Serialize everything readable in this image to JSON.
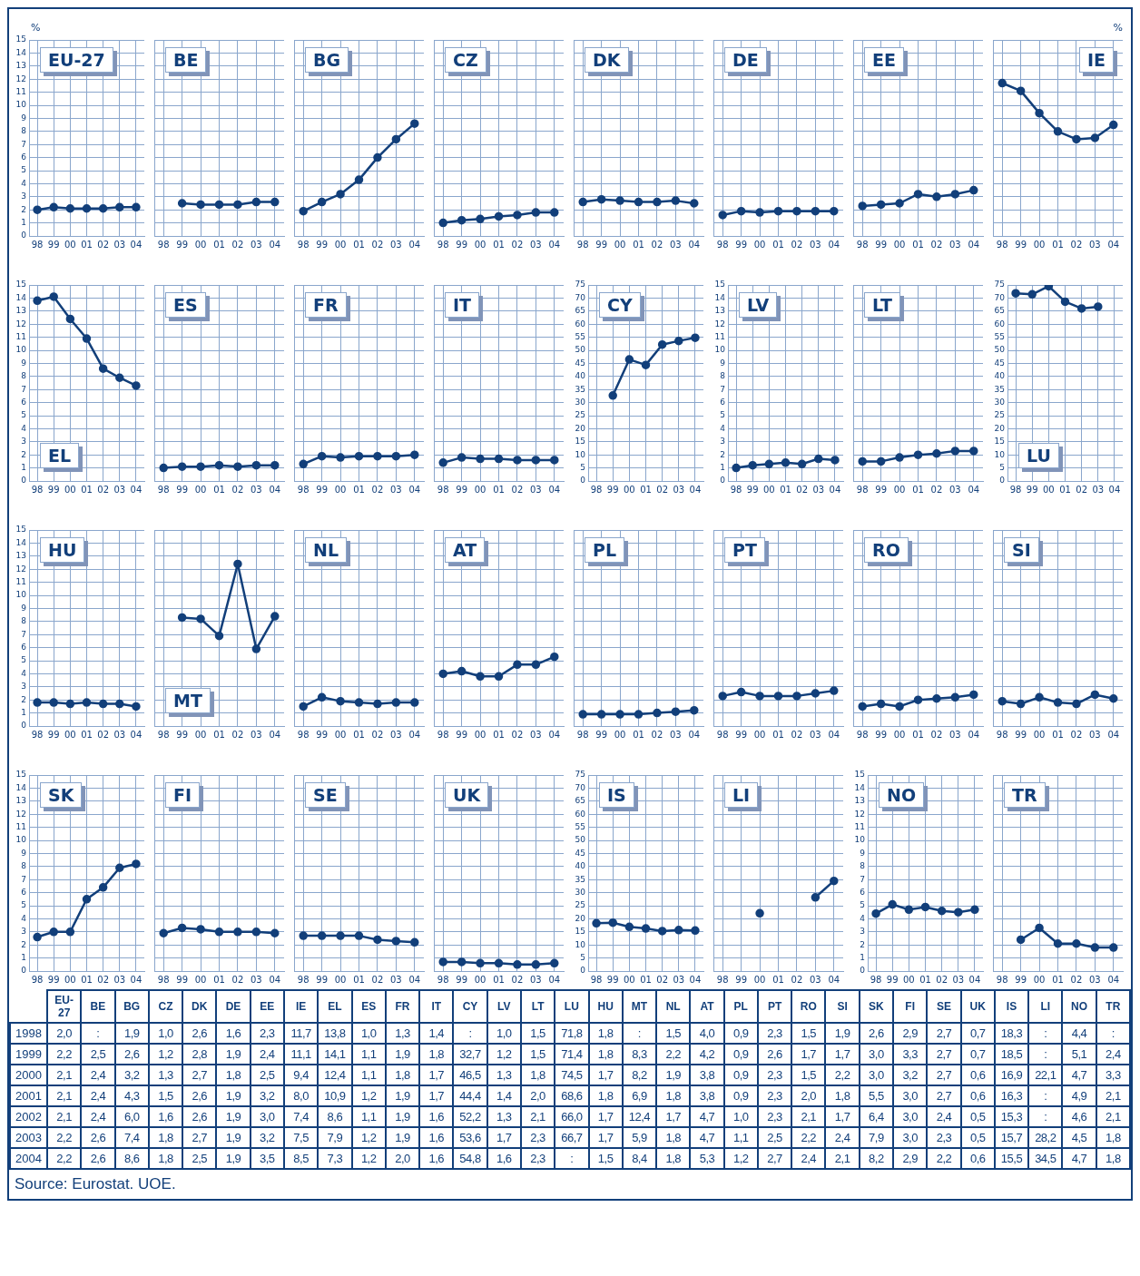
{
  "chart_data": [
    {
      "type": "line",
      "title": "EU-27",
      "ylabel": "%",
      "categories": [
        "98",
        "99",
        "00",
        "01",
        "02",
        "03",
        "04"
      ],
      "values": [
        2.0,
        2.2,
        2.1,
        2.1,
        2.1,
        2.2,
        2.2
      ],
      "value_labels": [
        "2,0",
        "2,2",
        "2,1",
        "2,1",
        "2,1",
        "2,2",
        "2,2"
      ],
      "color": "#123f7a",
      "ylim": [
        0,
        15
      ],
      "yticks": [
        0,
        1,
        2,
        3,
        4,
        5,
        6,
        7,
        8,
        9,
        10,
        11,
        12,
        13,
        14,
        15
      ],
      "grid": true,
      "marker": "circle"
    },
    {
      "type": "line",
      "title": "BE",
      "categories": [
        "98",
        "99",
        "00",
        "01",
        "02",
        "03",
        "04"
      ],
      "values": [
        null,
        2.5,
        2.4,
        2.4,
        2.4,
        2.6,
        2.6
      ],
      "value_labels": [
        ":",
        "2,5",
        "2,4",
        "2,4",
        "2,4",
        "2,6",
        "2,6"
      ],
      "color": "#123f7a",
      "ylim": [
        0,
        15
      ],
      "yticks": [
        0,
        1,
        2,
        3,
        4,
        5,
        6,
        7,
        8,
        9,
        10,
        11,
        12,
        13,
        14,
        15
      ],
      "grid": true,
      "marker": "circle",
      "tick_labels": "x"
    },
    {
      "type": "line",
      "title": "BG",
      "categories": [
        "98",
        "99",
        "00",
        "01",
        "02",
        "03",
        "04"
      ],
      "values": [
        1.9,
        2.6,
        3.2,
        4.3,
        6.0,
        7.4,
        8.6
      ],
      "value_labels": [
        "1,9",
        "2,6",
        "3,2",
        "4,3",
        "6,0",
        "7,4",
        "8,6"
      ],
      "color": "#123f7a",
      "ylim": [
        0,
        15
      ],
      "yticks": [
        0,
        1,
        2,
        3,
        4,
        5,
        6,
        7,
        8,
        9,
        10,
        11,
        12,
        13,
        14,
        15
      ],
      "grid": true,
      "marker": "circle",
      "tick_labels": "x"
    },
    {
      "type": "line",
      "title": "CZ",
      "categories": [
        "98",
        "99",
        "00",
        "01",
        "02",
        "03",
        "04"
      ],
      "values": [
        1.0,
        1.2,
        1.3,
        1.5,
        1.6,
        1.8,
        1.8
      ],
      "value_labels": [
        "1,0",
        "1,2",
        "1,3",
        "1,5",
        "1,6",
        "1,8",
        "1,8"
      ],
      "color": "#123f7a",
      "ylim": [
        0,
        15
      ],
      "yticks": [
        0,
        1,
        2,
        3,
        4,
        5,
        6,
        7,
        8,
        9,
        10,
        11,
        12,
        13,
        14,
        15
      ],
      "grid": true,
      "marker": "circle",
      "tick_labels": "x"
    },
    {
      "type": "line",
      "title": "DK",
      "categories": [
        "98",
        "99",
        "00",
        "01",
        "02",
        "03",
        "04"
      ],
      "values": [
        2.6,
        2.8,
        2.7,
        2.6,
        2.6,
        2.7,
        2.5
      ],
      "value_labels": [
        "2,6",
        "2,8",
        "2,7",
        "2,6",
        "2,6",
        "2,7",
        "2,5"
      ],
      "color": "#123f7a",
      "ylim": [
        0,
        15
      ],
      "yticks": [
        0,
        1,
        2,
        3,
        4,
        5,
        6,
        7,
        8,
        9,
        10,
        11,
        12,
        13,
        14,
        15
      ],
      "grid": true,
      "marker": "circle",
      "tick_labels": "x"
    },
    {
      "type": "line",
      "title": "DE",
      "categories": [
        "98",
        "99",
        "00",
        "01",
        "02",
        "03",
        "04"
      ],
      "values": [
        1.6,
        1.9,
        1.8,
        1.9,
        1.9,
        1.9,
        1.9
      ],
      "value_labels": [
        "1,6",
        "1,9",
        "1,8",
        "1,9",
        "1,9",
        "1,9",
        "1,9"
      ],
      "color": "#123f7a",
      "ylim": [
        0,
        15
      ],
      "yticks": [
        0,
        1,
        2,
        3,
        4,
        5,
        6,
        7,
        8,
        9,
        10,
        11,
        12,
        13,
        14,
        15
      ],
      "grid": true,
      "marker": "circle",
      "tick_labels": "x"
    },
    {
      "type": "line",
      "title": "EE",
      "categories": [
        "98",
        "99",
        "00",
        "01",
        "02",
        "03",
        "04"
      ],
      "values": [
        2.3,
        2.4,
        2.5,
        3.2,
        3.0,
        3.2,
        3.5
      ],
      "value_labels": [
        "2,3",
        "2,4",
        "2,5",
        "3,2",
        "3,0",
        "3,2",
        "3,5"
      ],
      "color": "#123f7a",
      "ylim": [
        0,
        15
      ],
      "yticks": [
        0,
        1,
        2,
        3,
        4,
        5,
        6,
        7,
        8,
        9,
        10,
        11,
        12,
        13,
        14,
        15
      ],
      "grid": true,
      "marker": "circle",
      "tick_labels": "x"
    },
    {
      "type": "line",
      "title": "IE",
      "ylabel": "%",
      "categories": [
        "98",
        "99",
        "00",
        "01",
        "02",
        "03",
        "04"
      ],
      "values": [
        11.7,
        11.1,
        9.4,
        8.0,
        7.4,
        7.5,
        8.5
      ],
      "value_labels": [
        "11,7",
        "11,1",
        "9,4",
        "8,0",
        "7,4",
        "7,5",
        "8,5"
      ],
      "color": "#123f7a",
      "ylim": [
        0,
        15
      ],
      "yticks": [
        0,
        1,
        2,
        3,
        4,
        5,
        6,
        7,
        8,
        9,
        10,
        11,
        12,
        13,
        14,
        15
      ],
      "grid": true,
      "marker": "circle",
      "tick_labels": "x"
    },
    {
      "type": "line",
      "title": "EL",
      "categories": [
        "98",
        "99",
        "00",
        "01",
        "02",
        "03",
        "04"
      ],
      "values": [
        13.8,
        14.1,
        12.4,
        10.9,
        8.6,
        7.9,
        7.3
      ],
      "value_labels": [
        "13,8",
        "14,1",
        "12,4",
        "10,9",
        "8,6",
        "7,9",
        "7,3"
      ],
      "color": "#123f7a",
      "ylim": [
        0,
        15
      ],
      "yticks": [
        0,
        1,
        2,
        3,
        4,
        5,
        6,
        7,
        8,
        9,
        10,
        11,
        12,
        13,
        14,
        15
      ],
      "grid": true,
      "marker": "circle"
    },
    {
      "type": "line",
      "title": "ES",
      "categories": [
        "98",
        "99",
        "00",
        "01",
        "02",
        "03",
        "04"
      ],
      "values": [
        1.0,
        1.1,
        1.1,
        1.2,
        1.1,
        1.2,
        1.2
      ],
      "value_labels": [
        "1,0",
        "1,1",
        "1,1",
        "1,2",
        "1,1",
        "1,2",
        "1,2"
      ],
      "color": "#123f7a",
      "ylim": [
        0,
        15
      ],
      "yticks": [
        0,
        1,
        2,
        3,
        4,
        5,
        6,
        7,
        8,
        9,
        10,
        11,
        12,
        13,
        14,
        15
      ],
      "grid": true,
      "marker": "circle",
      "tick_labels": "x"
    },
    {
      "type": "line",
      "title": "FR",
      "categories": [
        "98",
        "99",
        "00",
        "01",
        "02",
        "03",
        "04"
      ],
      "values": [
        1.3,
        1.9,
        1.8,
        1.9,
        1.9,
        1.9,
        2.0
      ],
      "value_labels": [
        "1,3",
        "1,9",
        "1,8",
        "1,9",
        "1,9",
        "1,9",
        "2,0"
      ],
      "color": "#123f7a",
      "ylim": [
        0,
        15
      ],
      "yticks": [
        0,
        1,
        2,
        3,
        4,
        5,
        6,
        7,
        8,
        9,
        10,
        11,
        12,
        13,
        14,
        15
      ],
      "grid": true,
      "marker": "circle",
      "tick_labels": "x"
    },
    {
      "type": "line",
      "title": "IT",
      "categories": [
        "98",
        "99",
        "00",
        "01",
        "02",
        "03",
        "04"
      ],
      "values": [
        1.4,
        1.8,
        1.7,
        1.7,
        1.6,
        1.6,
        1.6
      ],
      "value_labels": [
        "1,4",
        "1,8",
        "1,7",
        "1,7",
        "1,6",
        "1,6",
        "1,6"
      ],
      "color": "#123f7a",
      "ylim": [
        0,
        15
      ],
      "yticks": [
        0,
        1,
        2,
        3,
        4,
        5,
        6,
        7,
        8,
        9,
        10,
        11,
        12,
        13,
        14,
        15
      ],
      "grid": true,
      "marker": "circle",
      "tick_labels": "x"
    },
    {
      "type": "line",
      "title": "CY",
      "categories": [
        "98",
        "99",
        "00",
        "01",
        "02",
        "03",
        "04"
      ],
      "values": [
        null,
        32.7,
        46.5,
        44.4,
        52.2,
        53.6,
        54.8
      ],
      "value_labels": [
        ":",
        "32,7",
        "46,5",
        "44,4",
        "52,2",
        "53,6",
        "54,8"
      ],
      "color": "#123f7a",
      "ylim": [
        0,
        75
      ],
      "yticks": [
        0,
        5,
        10,
        15,
        20,
        25,
        30,
        35,
        40,
        45,
        50,
        55,
        60,
        65,
        70,
        75
      ],
      "grid": true,
      "marker": "circle"
    },
    {
      "type": "line",
      "title": "LV",
      "categories": [
        "98",
        "99",
        "00",
        "01",
        "02",
        "03",
        "04"
      ],
      "values": [
        1.0,
        1.2,
        1.3,
        1.4,
        1.3,
        1.7,
        1.6
      ],
      "value_labels": [
        "1,0",
        "1,2",
        "1,3",
        "1,4",
        "1,3",
        "1,7",
        "1,6"
      ],
      "color": "#123f7a",
      "ylim": [
        0,
        15
      ],
      "yticks": [
        0,
        1,
        2,
        3,
        4,
        5,
        6,
        7,
        8,
        9,
        10,
        11,
        12,
        13,
        14,
        15
      ],
      "grid": true,
      "marker": "circle"
    },
    {
      "type": "line",
      "title": "LT",
      "categories": [
        "98",
        "99",
        "00",
        "01",
        "02",
        "03",
        "04"
      ],
      "values": [
        1.5,
        1.5,
        1.8,
        2.0,
        2.1,
        2.3,
        2.3
      ],
      "value_labels": [
        "1,5",
        "1,5",
        "1,8",
        "2,0",
        "2,1",
        "2,3",
        "2,3"
      ],
      "color": "#123f7a",
      "ylim": [
        0,
        15
      ],
      "yticks": [
        0,
        1,
        2,
        3,
        4,
        5,
        6,
        7,
        8,
        9,
        10,
        11,
        12,
        13,
        14,
        15
      ],
      "grid": true,
      "marker": "circle",
      "tick_labels": "x"
    },
    {
      "type": "line",
      "title": "LU",
      "categories": [
        "98",
        "99",
        "00",
        "01",
        "02",
        "03",
        "04"
      ],
      "values": [
        71.8,
        71.4,
        74.5,
        68.6,
        66.0,
        66.7,
        null
      ],
      "value_labels": [
        "71,8",
        "71,4",
        "74,5",
        "68,6",
        "66,0",
        "66,7",
        ":"
      ],
      "color": "#123f7a",
      "ylim": [
        0,
        75
      ],
      "yticks": [
        0,
        5,
        10,
        15,
        20,
        25,
        30,
        35,
        40,
        45,
        50,
        55,
        60,
        65,
        70,
        75
      ],
      "grid": true,
      "marker": "circle"
    },
    {
      "type": "line",
      "title": "HU",
      "categories": [
        "98",
        "99",
        "00",
        "01",
        "02",
        "03",
        "04"
      ],
      "values": [
        1.8,
        1.8,
        1.7,
        1.8,
        1.7,
        1.7,
        1.5
      ],
      "value_labels": [
        "1,8",
        "1,8",
        "1,7",
        "1,8",
        "1,7",
        "1,7",
        "1,5"
      ],
      "color": "#123f7a",
      "ylim": [
        0,
        15
      ],
      "yticks": [
        0,
        1,
        2,
        3,
        4,
        5,
        6,
        7,
        8,
        9,
        10,
        11,
        12,
        13,
        14,
        15
      ],
      "grid": true,
      "marker": "circle"
    },
    {
      "type": "line",
      "title": "MT",
      "categories": [
        "98",
        "99",
        "00",
        "01",
        "02",
        "03",
        "04"
      ],
      "values": [
        null,
        8.3,
        8.2,
        6.9,
        12.4,
        5.9,
        8.4
      ],
      "value_labels": [
        ":",
        "8,3",
        "8,2",
        "6,9",
        "12,4",
        "5,9",
        "8,4"
      ],
      "color": "#123f7a",
      "ylim": [
        0,
        15
      ],
      "yticks": [
        0,
        1,
        2,
        3,
        4,
        5,
        6,
        7,
        8,
        9,
        10,
        11,
        12,
        13,
        14,
        15
      ],
      "grid": true,
      "marker": "circle",
      "tick_labels": "x"
    },
    {
      "type": "line",
      "title": "NL",
      "categories": [
        "98",
        "99",
        "00",
        "01",
        "02",
        "03",
        "04"
      ],
      "values": [
        1.5,
        2.2,
        1.9,
        1.8,
        1.7,
        1.8,
        1.8
      ],
      "value_labels": [
        "1,5",
        "2,2",
        "1,9",
        "1,8",
        "1,7",
        "1,8",
        "1,8"
      ],
      "color": "#123f7a",
      "ylim": [
        0,
        15
      ],
      "yticks": [
        0,
        1,
        2,
        3,
        4,
        5,
        6,
        7,
        8,
        9,
        10,
        11,
        12,
        13,
        14,
        15
      ],
      "grid": true,
      "marker": "circle",
      "tick_labels": "x"
    },
    {
      "type": "line",
      "title": "AT",
      "categories": [
        "98",
        "99",
        "00",
        "01",
        "02",
        "03",
        "04"
      ],
      "values": [
        4.0,
        4.2,
        3.8,
        3.8,
        4.7,
        4.7,
        5.3
      ],
      "value_labels": [
        "4,0",
        "4,2",
        "3,8",
        "3,8",
        "4,7",
        "4,7",
        "5,3"
      ],
      "color": "#123f7a",
      "ylim": [
        0,
        15
      ],
      "yticks": [
        0,
        1,
        2,
        3,
        4,
        5,
        6,
        7,
        8,
        9,
        10,
        11,
        12,
        13,
        14,
        15
      ],
      "grid": true,
      "marker": "circle",
      "tick_labels": "x"
    },
    {
      "type": "line",
      "title": "PL",
      "categories": [
        "98",
        "99",
        "00",
        "01",
        "02",
        "03",
        "04"
      ],
      "values": [
        0.9,
        0.9,
        0.9,
        0.9,
        1.0,
        1.1,
        1.2
      ],
      "value_labels": [
        "0,9",
        "0,9",
        "0,9",
        "0,9",
        "1,0",
        "1,1",
        "1,2"
      ],
      "color": "#123f7a",
      "ylim": [
        0,
        15
      ],
      "yticks": [
        0,
        1,
        2,
        3,
        4,
        5,
        6,
        7,
        8,
        9,
        10,
        11,
        12,
        13,
        14,
        15
      ],
      "grid": true,
      "marker": "circle",
      "tick_labels": "x"
    },
    {
      "type": "line",
      "title": "PT",
      "categories": [
        "98",
        "99",
        "00",
        "01",
        "02",
        "03",
        "04"
      ],
      "values": [
        2.3,
        2.6,
        2.3,
        2.3,
        2.3,
        2.5,
        2.7
      ],
      "value_labels": [
        "2,3",
        "2,6",
        "2,3",
        "2,3",
        "2,3",
        "2,5",
        "2,7"
      ],
      "color": "#123f7a",
      "ylim": [
        0,
        15
      ],
      "yticks": [
        0,
        1,
        2,
        3,
        4,
        5,
        6,
        7,
        8,
        9,
        10,
        11,
        12,
        13,
        14,
        15
      ],
      "grid": true,
      "marker": "circle",
      "tick_labels": "x"
    },
    {
      "type": "line",
      "title": "RO",
      "categories": [
        "98",
        "99",
        "00",
        "01",
        "02",
        "03",
        "04"
      ],
      "values": [
        1.5,
        1.7,
        1.5,
        2.0,
        2.1,
        2.2,
        2.4
      ],
      "value_labels": [
        "1,5",
        "1,7",
        "1,5",
        "2,0",
        "2,1",
        "2,2",
        "2,4"
      ],
      "color": "#123f7a",
      "ylim": [
        0,
        15
      ],
      "yticks": [
        0,
        1,
        2,
        3,
        4,
        5,
        6,
        7,
        8,
        9,
        10,
        11,
        12,
        13,
        14,
        15
      ],
      "grid": true,
      "marker": "circle",
      "tick_labels": "x"
    },
    {
      "type": "line",
      "title": "SI",
      "categories": [
        "98",
        "99",
        "00",
        "01",
        "02",
        "03",
        "04"
      ],
      "values": [
        1.9,
        1.7,
        2.2,
        1.8,
        1.7,
        2.4,
        2.1
      ],
      "value_labels": [
        "1,9",
        "1,7",
        "2,2",
        "1,8",
        "1,7",
        "2,4",
        "2,1"
      ],
      "color": "#123f7a",
      "ylim": [
        0,
        15
      ],
      "yticks": [
        0,
        1,
        2,
        3,
        4,
        5,
        6,
        7,
        8,
        9,
        10,
        11,
        12,
        13,
        14,
        15
      ],
      "grid": true,
      "marker": "circle",
      "tick_labels": "x"
    },
    {
      "type": "line",
      "title": "SK",
      "categories": [
        "98",
        "99",
        "00",
        "01",
        "02",
        "03",
        "04"
      ],
      "values": [
        2.6,
        3.0,
        3.0,
        5.5,
        6.4,
        7.9,
        8.2
      ],
      "value_labels": [
        "2,6",
        "3,0",
        "3,0",
        "5,5",
        "6,4",
        "7,9",
        "8,2"
      ],
      "color": "#123f7a",
      "ylim": [
        0,
        15
      ],
      "yticks": [
        0,
        1,
        2,
        3,
        4,
        5,
        6,
        7,
        8,
        9,
        10,
        11,
        12,
        13,
        14,
        15
      ],
      "grid": true,
      "marker": "circle"
    },
    {
      "type": "line",
      "title": "FI",
      "categories": [
        "98",
        "99",
        "00",
        "01",
        "02",
        "03",
        "04"
      ],
      "values": [
        2.9,
        3.3,
        3.2,
        3.0,
        3.0,
        3.0,
        2.9
      ],
      "value_labels": [
        "2,9",
        "3,3",
        "3,2",
        "3,0",
        "3,0",
        "3,0",
        "2,9"
      ],
      "color": "#123f7a",
      "ylim": [
        0,
        15
      ],
      "yticks": [
        0,
        1,
        2,
        3,
        4,
        5,
        6,
        7,
        8,
        9,
        10,
        11,
        12,
        13,
        14,
        15
      ],
      "grid": true,
      "marker": "circle",
      "tick_labels": "x"
    },
    {
      "type": "line",
      "title": "SE",
      "categories": [
        "98",
        "99",
        "00",
        "01",
        "02",
        "03",
        "04"
      ],
      "values": [
        2.7,
        2.7,
        2.7,
        2.7,
        2.4,
        2.3,
        2.2
      ],
      "value_labels": [
        "2,7",
        "2,7",
        "2,7",
        "2,7",
        "2,4",
        "2,3",
        "2,2"
      ],
      "color": "#123f7a",
      "ylim": [
        0,
        15
      ],
      "yticks": [
        0,
        1,
        2,
        3,
        4,
        5,
        6,
        7,
        8,
        9,
        10,
        11,
        12,
        13,
        14,
        15
      ],
      "grid": true,
      "marker": "circle",
      "tick_labels": "x"
    },
    {
      "type": "line",
      "title": "UK",
      "categories": [
        "98",
        "99",
        "00",
        "01",
        "02",
        "03",
        "04"
      ],
      "values": [
        0.7,
        0.7,
        0.6,
        0.6,
        0.5,
        0.5,
        0.6
      ],
      "value_labels": [
        "0,7",
        "0,7",
        "0,6",
        "0,6",
        "0,5",
        "0,5",
        "0,6"
      ],
      "color": "#123f7a",
      "ylim": [
        0,
        15
      ],
      "yticks": [
        0,
        1,
        2,
        3,
        4,
        5,
        6,
        7,
        8,
        9,
        10,
        11,
        12,
        13,
        14,
        15
      ],
      "grid": true,
      "marker": "circle",
      "tick_labels": "x"
    },
    {
      "type": "line",
      "title": "IS",
      "categories": [
        "98",
        "99",
        "00",
        "01",
        "02",
        "03",
        "04"
      ],
      "values": [
        18.3,
        18.5,
        16.9,
        16.3,
        15.3,
        15.7,
        15.5
      ],
      "value_labels": [
        "18,3",
        "18,5",
        "16,9",
        "16,3",
        "15,3",
        "15,7",
        "15,5"
      ],
      "color": "#123f7a",
      "ylim": [
        0,
        75
      ],
      "yticks": [
        0,
        5,
        10,
        15,
        20,
        25,
        30,
        35,
        40,
        45,
        50,
        55,
        60,
        65,
        70,
        75
      ],
      "grid": true,
      "marker": "circle"
    },
    {
      "type": "line",
      "title": "LI",
      "categories": [
        "98",
        "99",
        "00",
        "01",
        "02",
        "03",
        "04"
      ],
      "values": [
        null,
        null,
        22.1,
        null,
        null,
        28.2,
        34.5
      ],
      "value_labels": [
        ":",
        ":",
        "22,1",
        ":",
        ":",
        "28,2",
        "34,5"
      ],
      "color": "#123f7a",
      "ylim": [
        0,
        75
      ],
      "yticks": [
        0,
        5,
        10,
        15,
        20,
        25,
        30,
        35,
        40,
        45,
        50,
        55,
        60,
        65,
        70,
        75
      ],
      "grid": true,
      "marker": "circle",
      "tick_labels": "x"
    },
    {
      "type": "line",
      "title": "NO",
      "categories": [
        "98",
        "99",
        "00",
        "01",
        "02",
        "03",
        "04"
      ],
      "values": [
        4.4,
        5.1,
        4.7,
        4.9,
        4.6,
        4.5,
        4.7
      ],
      "value_labels": [
        "4,4",
        "5,1",
        "4,7",
        "4,9",
        "4,6",
        "4,5",
        "4,7"
      ],
      "color": "#123f7a",
      "ylim": [
        0,
        15
      ],
      "yticks": [
        0,
        1,
        2,
        3,
        4,
        5,
        6,
        7,
        8,
        9,
        10,
        11,
        12,
        13,
        14,
        15
      ],
      "grid": true,
      "marker": "circle"
    },
    {
      "type": "line",
      "title": "TR",
      "categories": [
        "98",
        "99",
        "00",
        "01",
        "02",
        "03",
        "04"
      ],
      "values": [
        null,
        2.4,
        3.3,
        2.1,
        2.1,
        1.8,
        1.8
      ],
      "value_labels": [
        ":",
        "2,4",
        "3,3",
        "2,1",
        "2,1",
        "1,8",
        "1,8"
      ],
      "color": "#123f7a",
      "ylim": [
        0,
        15
      ],
      "yticks": [
        0,
        1,
        2,
        3,
        4,
        5,
        6,
        7,
        8,
        9,
        10,
        11,
        12,
        13,
        14,
        15
      ],
      "grid": true,
      "marker": "circle",
      "tick_labels": "x"
    },
    {
      "type": "other",
      "categories": [
        "1998",
        "1999",
        "2000",
        "2001",
        "2002",
        "2003",
        "2004"
      ],
      "annotations": [
        "Source: Eurostat. UOE."
      ]
    }
  ]
}
